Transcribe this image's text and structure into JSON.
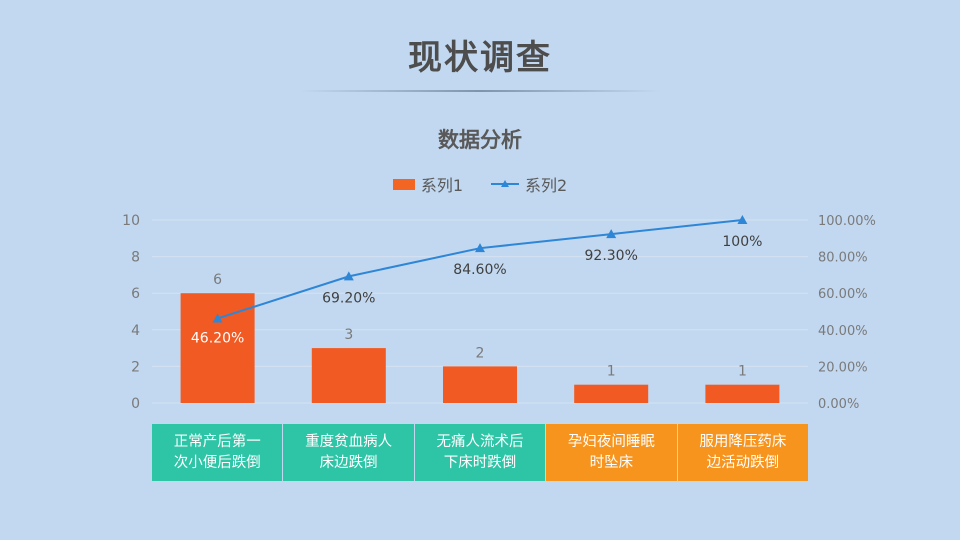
{
  "slide": {
    "title": "现状调查"
  },
  "chart_data": {
    "type": "bar",
    "title": "数据分析",
    "categories": [
      "正常产后第一次小便后跌倒",
      "重度贫血病人床边跌倒",
      "无痛人流术后下床时跌倒",
      "孕妇夜间睡眠时坠床",
      "服用降压药床边活动跌倒"
    ],
    "category_lines": [
      [
        "正常产后第一",
        "次小便后跌倒"
      ],
      [
        "重度贫血病人",
        "床边跌倒"
      ],
      [
        "无痛人流术后",
        "下床时跌倒"
      ],
      [
        "孕妇夜间睡眠",
        "时坠床"
      ],
      [
        "服用降压药床",
        "边活动跌倒"
      ]
    ],
    "category_colors": [
      "#2ec4a6",
      "#2ec4a6",
      "#2ec4a6",
      "#f7941d",
      "#f7941d"
    ],
    "series": [
      {
        "name": "系列1",
        "type": "bar",
        "values": [
          6,
          3,
          2,
          1,
          1
        ],
        "labels": [
          "6",
          "3",
          "2",
          "1",
          "1"
        ],
        "color": "#f15a22"
      },
      {
        "name": "系列2",
        "type": "line",
        "axis": "right",
        "values": [
          46.2,
          69.2,
          84.6,
          92.3,
          100
        ],
        "labels": [
          "46.20%",
          "69.20%",
          "84.60%",
          "92.30%",
          "100%"
        ],
        "color": "#2e86d6"
      }
    ],
    "y_left": {
      "min": 0,
      "max": 10,
      "ticks": [
        "0",
        "2",
        "4",
        "6",
        "8",
        "10"
      ]
    },
    "y_right": {
      "min": 0,
      "max": 100,
      "ticks": [
        "0.00%",
        "20.00%",
        "40.00%",
        "60.00%",
        "80.00%",
        "100.00%"
      ]
    },
    "grid": true,
    "legend_position": "top"
  }
}
